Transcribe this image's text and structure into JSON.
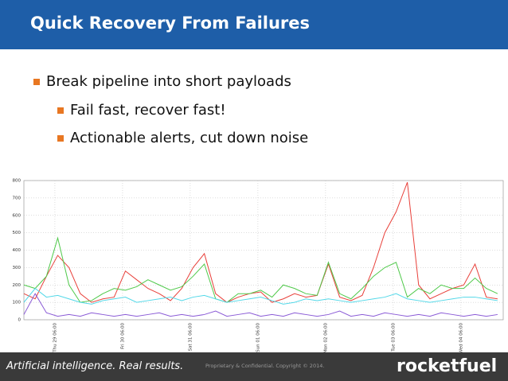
{
  "header": {
    "title": "Quick Recovery From Failures"
  },
  "bullets": [
    "Break pipeline into short payloads",
    "Fail fast, recover fast!",
    "Actionable alerts, cut down noise"
  ],
  "footer": {
    "tagline": "Artificial intelligence. Real results.",
    "copyright": "Proprietary & Confidential. Copyright © 2014.",
    "logo": "rocketfuel"
  },
  "chart_data": {
    "type": "line",
    "x": [
      0,
      4,
      8,
      12,
      16,
      20,
      24,
      28,
      32,
      36,
      40,
      44,
      48,
      52,
      56,
      60,
      64,
      68,
      72,
      76,
      80,
      84,
      88,
      92,
      96,
      100,
      104,
      108,
      112,
      116,
      120,
      124,
      128,
      132,
      136,
      140,
      144,
      148,
      152,
      156,
      160,
      164,
      168
    ],
    "xlim": [
      0,
      170
    ],
    "xticks": [
      {
        "value": 11,
        "label": "Thu 29 06:00"
      },
      {
        "value": 35,
        "label": "Fri 30 06:00"
      },
      {
        "value": 59,
        "label": "Sat 31 06:00"
      },
      {
        "value": 83,
        "label": "Sun 01 06:00"
      },
      {
        "value": 107,
        "label": "Mon 02 06:00"
      },
      {
        "value": 131,
        "label": "Tue 03 06:00"
      },
      {
        "value": 155,
        "label": "Wed 04 06:00"
      }
    ],
    "ylim": [
      0,
      800
    ],
    "yticks": [
      0,
      100,
      200,
      300,
      400,
      500,
      600,
      700,
      800
    ],
    "grid": true,
    "series": [
      {
        "color": "#e8403a",
        "values": [
          150,
          120,
          250,
          370,
          300,
          150,
          100,
          120,
          130,
          280,
          230,
          180,
          150,
          110,
          180,
          300,
          380,
          150,
          100,
          130,
          150,
          160,
          100,
          120,
          150,
          130,
          140,
          320,
          130,
          110,
          140,
          300,
          500,
          620,
          790,
          200,
          120,
          150,
          180,
          200,
          320,
          130,
          120
        ]
      },
      {
        "color": "#4fc94a",
        "values": [
          200,
          180,
          250,
          470,
          200,
          100,
          110,
          150,
          180,
          170,
          190,
          230,
          200,
          170,
          190,
          250,
          320,
          120,
          100,
          150,
          150,
          170,
          130,
          200,
          180,
          150,
          140,
          330,
          150,
          120,
          180,
          250,
          300,
          330,
          130,
          180,
          150,
          200,
          180,
          180,
          240,
          180,
          150
        ]
      },
      {
        "color": "#52d8e8",
        "values": [
          100,
          180,
          130,
          140,
          120,
          100,
          90,
          110,
          120,
          130,
          100,
          110,
          120,
          130,
          110,
          130,
          140,
          120,
          100,
          110,
          120,
          130,
          110,
          90,
          100,
          120,
          110,
          120,
          110,
          100,
          110,
          120,
          130,
          150,
          120,
          110,
          100,
          110,
          120,
          130,
          130,
          120,
          110
        ]
      },
      {
        "color": "#8a5ad6",
        "values": [
          30,
          150,
          40,
          20,
          30,
          20,
          40,
          30,
          20,
          30,
          20,
          30,
          40,
          20,
          30,
          20,
          30,
          50,
          20,
          30,
          40,
          20,
          30,
          20,
          40,
          30,
          20,
          30,
          50,
          20,
          30,
          20,
          40,
          30,
          20,
          30,
          20,
          40,
          30,
          20,
          30,
          20,
          30
        ]
      }
    ]
  }
}
